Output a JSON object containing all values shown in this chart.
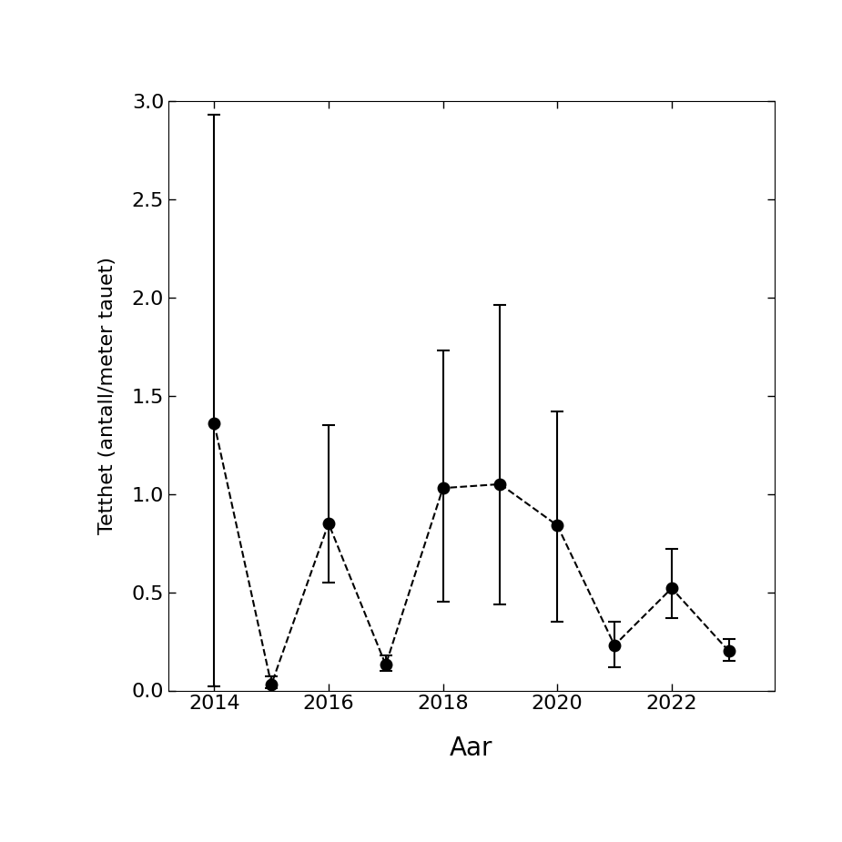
{
  "years": [
    2014,
    2015,
    2016,
    2017,
    2018,
    2019,
    2020,
    2021,
    2022,
    2023
  ],
  "means": [
    1.36,
    0.03,
    0.85,
    0.13,
    1.03,
    1.05,
    0.84,
    0.23,
    0.52,
    0.2
  ],
  "lower": [
    0.02,
    0.01,
    0.55,
    0.1,
    0.45,
    0.44,
    0.35,
    0.12,
    0.37,
    0.15
  ],
  "upper": [
    2.93,
    0.07,
    1.35,
    0.18,
    1.73,
    1.96,
    1.42,
    0.35,
    0.72,
    0.26
  ],
  "xlabel": "Aar",
  "ylabel": "Tetthet (antall/meter tauet)",
  "ylim": [
    0.0,
    3.0
  ],
  "xlim": [
    2013.2,
    2023.8
  ],
  "yticks": [
    0.0,
    0.5,
    1.0,
    1.5,
    2.0,
    2.5,
    3.0
  ],
  "xticks": [
    2014,
    2016,
    2018,
    2020,
    2022
  ],
  "line_color": "#000000",
  "marker_color": "#000000",
  "background_color": "#ffffff"
}
